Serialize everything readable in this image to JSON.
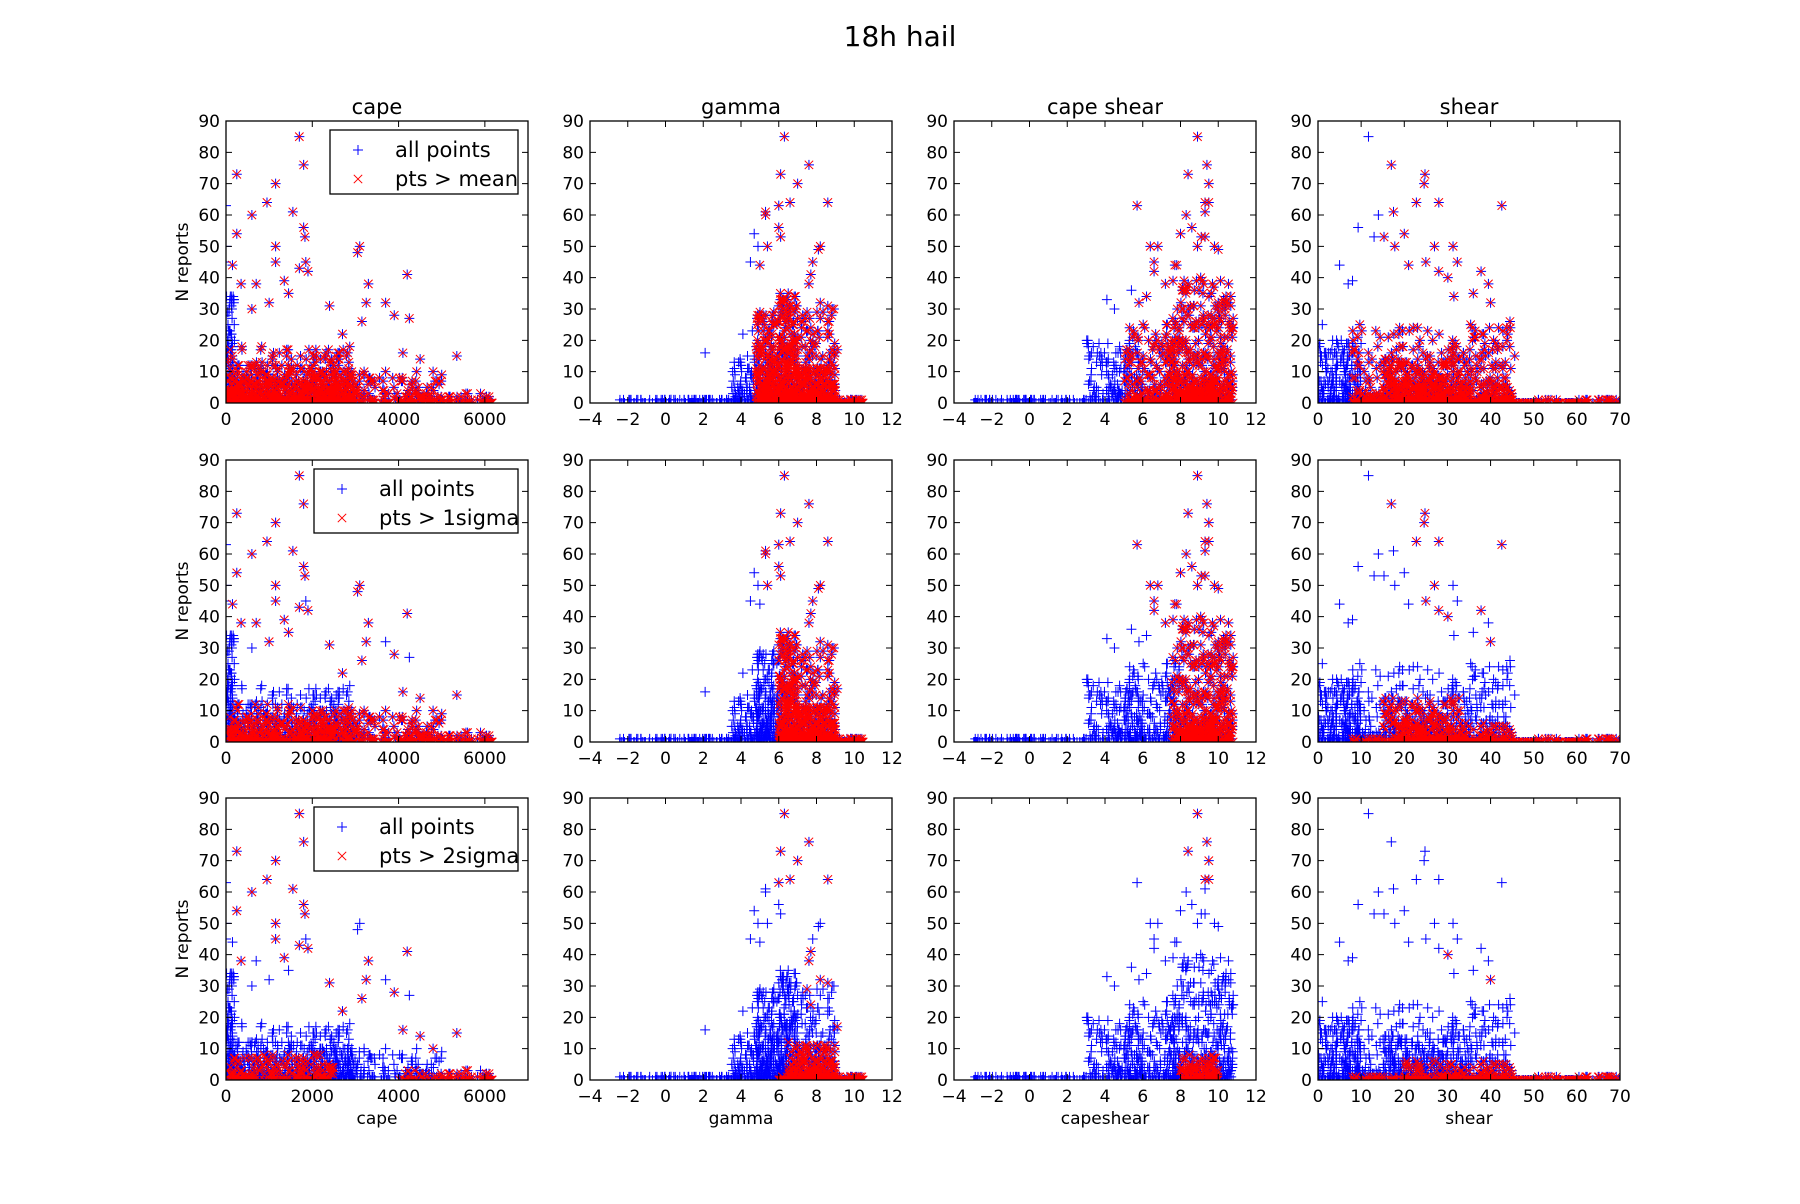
{
  "chart_data": {
    "type": "scatter",
    "title": "18h hail",
    "ylabel": "N reports",
    "ylim": [
      0,
      90
    ],
    "yticks": [
      0,
      10,
      20,
      30,
      40,
      50,
      60,
      70,
      80,
      90
    ],
    "ytick_labels": [
      "0",
      "10",
      "20",
      "30",
      "40",
      "50",
      "60",
      "70",
      "80",
      "90"
    ],
    "colors": {
      "all": "#0000ff",
      "selected": "#ff0000"
    },
    "rows": [
      {
        "legend_all": "all points",
        "legend_selected": "pts > mean",
        "min_level": 1
      },
      {
        "legend_all": "all points",
        "legend_selected": "pts > 1sigma",
        "min_level": 2
      },
      {
        "legend_all": "all points",
        "legend_selected": "pts > 2sigma",
        "min_level": 3
      }
    ],
    "variables": [
      {
        "title": "cape",
        "xlabel": "cape",
        "xlim": [
          0,
          7000
        ],
        "xticks": [
          0,
          2000,
          4000,
          6000
        ],
        "xtick_labels": [
          "0",
          "2000",
          "4000",
          "6000"
        ],
        "points": [
          [
            1700,
            85,
            3
          ],
          [
            1800,
            76,
            3
          ],
          [
            250,
            73,
            3
          ],
          [
            1150,
            70,
            3
          ],
          [
            950,
            64,
            3
          ],
          [
            1550,
            61,
            3
          ],
          [
            600,
            60,
            3
          ],
          [
            250,
            54,
            3
          ],
          [
            1800,
            56,
            3
          ],
          [
            1830,
            53,
            3
          ],
          [
            1150,
            50,
            3
          ],
          [
            3100,
            50,
            2
          ],
          [
            3050,
            48,
            2
          ],
          [
            1150,
            45,
            3
          ],
          [
            150,
            44,
            2
          ],
          [
            1850,
            45,
            1
          ],
          [
            1700,
            43,
            3
          ],
          [
            1900,
            42,
            3
          ],
          [
            4200,
            41,
            3
          ],
          [
            1350,
            39,
            3
          ],
          [
            0,
            63,
            0
          ],
          [
            0,
            50,
            0
          ],
          [
            0,
            45,
            0
          ],
          [
            3300,
            38,
            3
          ],
          [
            3700,
            32,
            1
          ],
          [
            3250,
            32,
            3
          ],
          [
            3150,
            26,
            3
          ],
          [
            3900,
            28,
            3
          ],
          [
            4250,
            27,
            1
          ],
          [
            5350,
            15,
            3
          ],
          [
            4100,
            16,
            3
          ],
          [
            4500,
            14,
            3
          ],
          [
            4800,
            10,
            3
          ],
          [
            5000,
            9,
            2
          ],
          [
            5600,
            3,
            3
          ],
          [
            5900,
            3,
            2
          ],
          [
            2400,
            31,
            3
          ],
          [
            2700,
            22,
            3
          ],
          [
            1450,
            35,
            2
          ],
          [
            700,
            38,
            2
          ],
          [
            350,
            38,
            3
          ],
          [
            1000,
            32,
            2
          ],
          [
            600,
            30,
            1
          ]
        ],
        "clusters": [
          {
            "x": [
              0,
              200
            ],
            "y": [
              0,
              35
            ],
            "n": 120,
            "level": 0
          },
          {
            "x": [
              0,
              3000
            ],
            "y": [
              0,
              18
            ],
            "n": 380,
            "level": 1
          },
          {
            "x": [
              0,
              3000
            ],
            "y": [
              0,
              12
            ],
            "n": 220,
            "level": 2
          },
          {
            "x": [
              0,
              2500
            ],
            "y": [
              0,
              8
            ],
            "n": 200,
            "level": 3
          },
          {
            "x": [
              2000,
              5000
            ],
            "y": [
              0,
              10
            ],
            "n": 160,
            "level": 2
          },
          {
            "x": [
              4000,
              6200
            ],
            "y": [
              0,
              3
            ],
            "n": 80,
            "level": 3
          }
        ]
      },
      {
        "title": "gamma",
        "xlabel": "gamma",
        "xlim": [
          -4,
          12
        ],
        "xticks": [
          -4,
          -2,
          0,
          2,
          4,
          6,
          8,
          10,
          12
        ],
        "xtick_labels": [
          "−4",
          "−2",
          "0",
          "2",
          "4",
          "6",
          "8",
          "10",
          "12"
        ],
        "points": [
          [
            6.3,
            85,
            3
          ],
          [
            7.6,
            76,
            3
          ],
          [
            6.1,
            73,
            3
          ],
          [
            7.0,
            70,
            3
          ],
          [
            6.0,
            63,
            3
          ],
          [
            6.6,
            64,
            3
          ],
          [
            8.6,
            64,
            3
          ],
          [
            5.3,
            61,
            2
          ],
          [
            5.3,
            60,
            2
          ],
          [
            6.0,
            56,
            2
          ],
          [
            4.7,
            54,
            0
          ],
          [
            4.9,
            50,
            0
          ],
          [
            5.4,
            50,
            2
          ],
          [
            6.1,
            53,
            2
          ],
          [
            8.2,
            50,
            2
          ],
          [
            8.1,
            49,
            2
          ],
          [
            4.5,
            45,
            0
          ],
          [
            5.0,
            44,
            1
          ],
          [
            7.8,
            45,
            2
          ],
          [
            7.7,
            41,
            3
          ],
          [
            7.6,
            38,
            3
          ],
          [
            8.6,
            31,
            3
          ],
          [
            8.2,
            32,
            3
          ],
          [
            9.1,
            17,
            3
          ],
          [
            2.1,
            16,
            0
          ],
          [
            4.1,
            22,
            0
          ],
          [
            4.6,
            23,
            0
          ],
          [
            8.6,
            26,
            2
          ],
          [
            8.6,
            21,
            2
          ],
          [
            7.5,
            29,
            3
          ],
          [
            7.7,
            24,
            3
          ]
        ],
        "clusters": [
          {
            "x": [
              -2.5,
              4
            ],
            "y": [
              0,
              1.4
            ],
            "n": 150,
            "level": 0
          },
          {
            "x": [
              3.5,
              5
            ],
            "y": [
              0,
              15
            ],
            "n": 110,
            "level": 0
          },
          {
            "x": [
              4.8,
              6
            ],
            "y": [
              0,
              30
            ],
            "n": 260,
            "level": 1
          },
          {
            "x": [
              6,
              7
            ],
            "y": [
              0,
              35
            ],
            "n": 260,
            "level": 2
          },
          {
            "x": [
              7,
              9
            ],
            "y": [
              0,
              30
            ],
            "n": 140,
            "level": 2
          },
          {
            "x": [
              6.5,
              9
            ],
            "y": [
              0,
              12
            ],
            "n": 240,
            "level": 3
          },
          {
            "x": [
              6,
              10.5
            ],
            "y": [
              0,
              1.4
            ],
            "n": 160,
            "level": 3
          }
        ]
      },
      {
        "title": "cape shear",
        "xlabel": "capeshear",
        "xlim": [
          -4,
          12
        ],
        "xticks": [
          -4,
          -2,
          0,
          2,
          4,
          6,
          8,
          10,
          12
        ],
        "xtick_labels": [
          "−4",
          "−2",
          "0",
          "2",
          "4",
          "6",
          "8",
          "10",
          "12"
        ],
        "points": [
          [
            8.9,
            85,
            3
          ],
          [
            9.4,
            76,
            3
          ],
          [
            8.4,
            73,
            3
          ],
          [
            9.5,
            70,
            3
          ],
          [
            9.3,
            64,
            3
          ],
          [
            9.5,
            64,
            3
          ],
          [
            9.3,
            61,
            2
          ],
          [
            5.7,
            63,
            2
          ],
          [
            8.3,
            60,
            2
          ],
          [
            8.6,
            56,
            2
          ],
          [
            8.0,
            54,
            2
          ],
          [
            9.1,
            53,
            2
          ],
          [
            9.3,
            53,
            2
          ],
          [
            6.4,
            50,
            2
          ],
          [
            6.8,
            50,
            2
          ],
          [
            8.9,
            50,
            2
          ],
          [
            9.8,
            50,
            2
          ],
          [
            10.0,
            49,
            2
          ],
          [
            7.7,
            44,
            2
          ],
          [
            7.8,
            44,
            2
          ],
          [
            6.6,
            45,
            2
          ],
          [
            6.6,
            42,
            2
          ],
          [
            4.1,
            33,
            0
          ],
          [
            4.5,
            30,
            0
          ],
          [
            5.4,
            36,
            0
          ],
          [
            7.2,
            38,
            2
          ],
          [
            10.4,
            32,
            2
          ],
          [
            5.8,
            32,
            1
          ],
          [
            6.2,
            34,
            1
          ]
        ],
        "clusters": [
          {
            "x": [
              -3,
              3
            ],
            "y": [
              0,
              1.4
            ],
            "n": 120,
            "level": 0
          },
          {
            "x": [
              3,
              6
            ],
            "y": [
              0,
              20
            ],
            "n": 180,
            "level": 0
          },
          {
            "x": [
              5,
              8
            ],
            "y": [
              0,
              25
            ],
            "n": 220,
            "level": 1
          },
          {
            "x": [
              7.5,
              10.8
            ],
            "y": [
              0,
              40
            ],
            "n": 420,
            "level": 2
          },
          {
            "x": [
              8,
              10
            ],
            "y": [
              0,
              8
            ],
            "n": 140,
            "level": 3
          }
        ]
      },
      {
        "title": "shear",
        "xlabel": "shear",
        "xlim": [
          0,
          70
        ],
        "xticks": [
          0,
          10,
          20,
          30,
          40,
          50,
          60,
          70
        ],
        "xtick_labels": [
          "0",
          "10",
          "20",
          "30",
          "40",
          "50",
          "60",
          "70"
        ],
        "points": [
          [
            11.7,
            85,
            0
          ],
          [
            17,
            76,
            2
          ],
          [
            24.8,
            73,
            2
          ],
          [
            24.6,
            70,
            2
          ],
          [
            22.8,
            64,
            2
          ],
          [
            28,
            64,
            2
          ],
          [
            42.6,
            63,
            2
          ],
          [
            14,
            60,
            0
          ],
          [
            9.3,
            56,
            0
          ],
          [
            17.5,
            61,
            1
          ],
          [
            20,
            54,
            1
          ],
          [
            15.3,
            53,
            1
          ],
          [
            13,
            53,
            0
          ],
          [
            27,
            50,
            2
          ],
          [
            31.3,
            50,
            1
          ],
          [
            17.8,
            50,
            1
          ],
          [
            25,
            45,
            2
          ],
          [
            32.3,
            45,
            1
          ],
          [
            21,
            44,
            1
          ],
          [
            28,
            42,
            2
          ],
          [
            37.8,
            42,
            2
          ],
          [
            39.5,
            38,
            1
          ],
          [
            5,
            44,
            0
          ],
          [
            7,
            38,
            0
          ],
          [
            8,
            39,
            0
          ],
          [
            1,
            25,
            0
          ],
          [
            36,
            35,
            1
          ],
          [
            44.5,
            26,
            1
          ],
          [
            40,
            32,
            3
          ],
          [
            45.6,
            15,
            1
          ],
          [
            31.5,
            34,
            1
          ],
          [
            30.1,
            40,
            3
          ]
        ],
        "clusters": [
          {
            "x": [
              0,
              10
            ],
            "y": [
              0,
              20
            ],
            "n": 260,
            "level": 0
          },
          {
            "x": [
              8,
              45
            ],
            "y": [
              0,
              25
            ],
            "n": 420,
            "level": 1
          },
          {
            "x": [
              15,
              35
            ],
            "y": [
              0,
              15
            ],
            "n": 240,
            "level": 2
          },
          {
            "x": [
              20,
              45
            ],
            "y": [
              0,
              6
            ],
            "n": 130,
            "level": 3
          },
          {
            "x": [
              8,
              70
            ],
            "y": [
              0,
              1
            ],
            "n": 220,
            "level": 3
          }
        ]
      }
    ]
  }
}
